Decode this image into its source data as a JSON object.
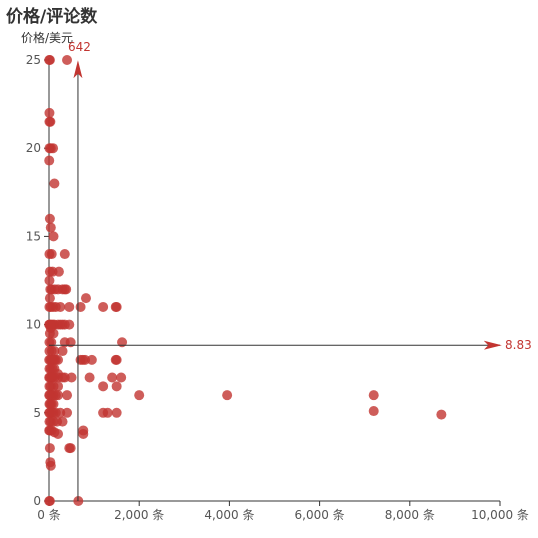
{
  "chart_data": {
    "type": "scatter",
    "title": "价格/评论数",
    "xlabel": "",
    "ylabel": "价格/美元",
    "x_unit": "条",
    "xlim": [
      0,
      10000
    ],
    "ylim": [
      0,
      25
    ],
    "x_ticks": [
      "0 条",
      "2,000 条",
      "4,000 条",
      "6,000 条",
      "8,000 条",
      "10,000 条"
    ],
    "y_ticks": [
      "0",
      "5",
      "10",
      "15",
      "20",
      "25"
    ],
    "grid": false,
    "legend": "none",
    "color": "#c23531",
    "mark_lines": [
      {
        "axis": "x",
        "label": "642",
        "value": 642
      },
      {
        "axis": "y",
        "label": "8.83",
        "value": 8.83
      }
    ],
    "points": [
      [
        5,
        25
      ],
      [
        20,
        25
      ],
      [
        400,
        25
      ],
      [
        10,
        22
      ],
      [
        30,
        21.5
      ],
      [
        10,
        21.5
      ],
      [
        10,
        20
      ],
      [
        40,
        20
      ],
      [
        90,
        20
      ],
      [
        5,
        19.3
      ],
      [
        120,
        18
      ],
      [
        20,
        16
      ],
      [
        40,
        15.5
      ],
      [
        100,
        15
      ],
      [
        350,
        14
      ],
      [
        10,
        14
      ],
      [
        60,
        14
      ],
      [
        20,
        13
      ],
      [
        80,
        13
      ],
      [
        220,
        13
      ],
      [
        10,
        12.5
      ],
      [
        30,
        12
      ],
      [
        60,
        12
      ],
      [
        130,
        12
      ],
      [
        200,
        12
      ],
      [
        300,
        12
      ],
      [
        350,
        12
      ],
      [
        380,
        12
      ],
      [
        20,
        11.5
      ],
      [
        40,
        11
      ],
      [
        90,
        11
      ],
      [
        150,
        11
      ],
      [
        250,
        11
      ],
      [
        450,
        11
      ],
      [
        700,
        11
      ],
      [
        1200,
        11
      ],
      [
        1480,
        11
      ],
      [
        1500,
        11
      ],
      [
        10,
        11
      ],
      [
        820,
        11.5
      ],
      [
        5,
        10
      ],
      [
        30,
        10
      ],
      [
        60,
        10
      ],
      [
        90,
        10
      ],
      [
        120,
        10
      ],
      [
        200,
        10
      ],
      [
        250,
        10
      ],
      [
        300,
        10
      ],
      [
        350,
        10
      ],
      [
        450,
        10
      ],
      [
        10,
        10
      ],
      [
        40,
        9.8
      ],
      [
        20,
        9.5
      ],
      [
        100,
        9.5
      ],
      [
        10,
        9
      ],
      [
        50,
        9
      ],
      [
        350,
        9
      ],
      [
        480,
        9
      ],
      [
        10,
        8.5
      ],
      [
        60,
        8.5
      ],
      [
        120,
        8.5
      ],
      [
        300,
        8.5
      ],
      [
        1620,
        9
      ],
      [
        5,
        8
      ],
      [
        30,
        8
      ],
      [
        60,
        8
      ],
      [
        90,
        8
      ],
      [
        120,
        8
      ],
      [
        150,
        8
      ],
      [
        200,
        8
      ],
      [
        700,
        8
      ],
      [
        750,
        8
      ],
      [
        800,
        8
      ],
      [
        950,
        8
      ],
      [
        1480,
        8
      ],
      [
        1500,
        8
      ],
      [
        10,
        7.5
      ],
      [
        40,
        7.5
      ],
      [
        80,
        7.5
      ],
      [
        120,
        7.5
      ],
      [
        200,
        7.2
      ],
      [
        5,
        7
      ],
      [
        20,
        7
      ],
      [
        50,
        7
      ],
      [
        80,
        7
      ],
      [
        120,
        7
      ],
      [
        200,
        7
      ],
      [
        300,
        7
      ],
      [
        350,
        7
      ],
      [
        500,
        7
      ],
      [
        900,
        7
      ],
      [
        1400,
        7
      ],
      [
        1600,
        7
      ],
      [
        10,
        6.5
      ],
      [
        40,
        6.5
      ],
      [
        100,
        6.5
      ],
      [
        200,
        6.5
      ],
      [
        1200,
        6.5
      ],
      [
        1500,
        6.5
      ],
      [
        5,
        6
      ],
      [
        20,
        6
      ],
      [
        60,
        6
      ],
      [
        100,
        6
      ],
      [
        150,
        6
      ],
      [
        200,
        6
      ],
      [
        400,
        6
      ],
      [
        2000,
        6
      ],
      [
        3950,
        6
      ],
      [
        7200,
        6
      ],
      [
        10,
        5.5
      ],
      [
        30,
        5.5
      ],
      [
        60,
        5.5
      ],
      [
        100,
        5.5
      ],
      [
        5,
        5
      ],
      [
        20,
        5
      ],
      [
        60,
        5
      ],
      [
        100,
        5
      ],
      [
        150,
        5
      ],
      [
        250,
        5
      ],
      [
        400,
        5
      ],
      [
        1200,
        5
      ],
      [
        1300,
        5
      ],
      [
        1500,
        5
      ],
      [
        7200,
        5.1
      ],
      [
        8700,
        4.9
      ],
      [
        10,
        4.5
      ],
      [
        40,
        4.5
      ],
      [
        100,
        4.5
      ],
      [
        180,
        4.5
      ],
      [
        300,
        4.5
      ],
      [
        5,
        4
      ],
      [
        20,
        4
      ],
      [
        60,
        4
      ],
      [
        120,
        3.9
      ],
      [
        200,
        3.8
      ],
      [
        760,
        3.8
      ],
      [
        760,
        4
      ],
      [
        20,
        3
      ],
      [
        450,
        3
      ],
      [
        480,
        3
      ],
      [
        30,
        2.2
      ],
      [
        40,
        2
      ],
      [
        5,
        0
      ],
      [
        20,
        0
      ],
      [
        650,
        0
      ]
    ]
  }
}
